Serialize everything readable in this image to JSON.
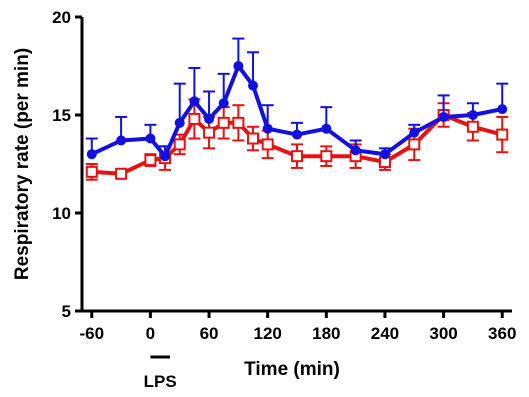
{
  "chart_data": {
    "type": "line",
    "title": "",
    "xlabel": "Time (min)",
    "ylabel": "Respiratory rate (per min)",
    "xlim": [
      -70,
      370
    ],
    "ylim": [
      5,
      20
    ],
    "xticks": [
      -60,
      0,
      60,
      120,
      180,
      240,
      300,
      360
    ],
    "xtick_labels": [
      "-60",
      "0",
      "60",
      "120",
      "180",
      "240",
      "300",
      "360"
    ],
    "yticks": [
      5,
      10,
      15,
      20
    ],
    "ytick_labels": [
      "5",
      "10",
      "15",
      "20"
    ],
    "grid": false,
    "legend": "none",
    "annotations": [
      {
        "text": "LPS",
        "x_start": 0,
        "x_end": 20
      }
    ],
    "series": [
      {
        "color": "#1010e0",
        "marker": "filled-circle",
        "points": [
          {
            "x": -60,
            "y": 13.0,
            "err": 0.8
          },
          {
            "x": -30,
            "y": 13.7,
            "err": 1.2
          },
          {
            "x": 0,
            "y": 13.8,
            "err": 0.7
          },
          {
            "x": 15,
            "y": 12.9,
            "err": 0.5
          },
          {
            "x": 30,
            "y": 14.6,
            "err": 2.0
          },
          {
            "x": 45,
            "y": 15.7,
            "err": 1.7
          },
          {
            "x": 60,
            "y": 14.8,
            "err": 1.4
          },
          {
            "x": 75,
            "y": 15.6,
            "err": 1.5
          },
          {
            "x": 90,
            "y": 17.5,
            "err": 1.4
          },
          {
            "x": 105,
            "y": 16.5,
            "err": 1.7
          },
          {
            "x": 120,
            "y": 14.3,
            "err": 1.2
          },
          {
            "x": 150,
            "y": 14.0,
            "err": 0.6
          },
          {
            "x": 180,
            "y": 14.3,
            "err": 1.1
          },
          {
            "x": 210,
            "y": 13.2,
            "err": 0.5
          },
          {
            "x": 240,
            "y": 13.0,
            "err": 0.3
          },
          {
            "x": 270,
            "y": 14.1,
            "err": 0.4
          },
          {
            "x": 300,
            "y": 14.9,
            "err": 1.1
          },
          {
            "x": 330,
            "y": 15.0,
            "err": 0.6
          },
          {
            "x": 360,
            "y": 15.3,
            "err": 1.3
          }
        ]
      },
      {
        "color": "#e81010",
        "marker": "open-square",
        "points": [
          {
            "x": -60,
            "y": 12.1,
            "err": 0.4
          },
          {
            "x": -30,
            "y": 12.0,
            "err": 0.2
          },
          {
            "x": 0,
            "y": 12.7,
            "err": 0.3
          },
          {
            "x": 15,
            "y": 12.8,
            "err": 0.6
          },
          {
            "x": 30,
            "y": 13.5,
            "err": 0.5
          },
          {
            "x": 45,
            "y": 14.8,
            "err": 1.0
          },
          {
            "x": 60,
            "y": 14.1,
            "err": 0.8
          },
          {
            "x": 75,
            "y": 14.6,
            "err": 0.8
          },
          {
            "x": 90,
            "y": 14.6,
            "err": 0.9
          },
          {
            "x": 105,
            "y": 13.8,
            "err": 0.6
          },
          {
            "x": 120,
            "y": 13.5,
            "err": 0.7
          },
          {
            "x": 150,
            "y": 12.9,
            "err": 0.6
          },
          {
            "x": 180,
            "y": 12.9,
            "err": 0.5
          },
          {
            "x": 210,
            "y": 12.9,
            "err": 0.6
          },
          {
            "x": 240,
            "y": 12.6,
            "err": 0.4
          },
          {
            "x": 270,
            "y": 13.5,
            "err": 0.8
          },
          {
            "x": 300,
            "y": 15.0,
            "err": 0.6
          },
          {
            "x": 330,
            "y": 14.4,
            "err": 0.7
          },
          {
            "x": 360,
            "y": 14.0,
            "err": 0.9
          }
        ]
      }
    ]
  }
}
